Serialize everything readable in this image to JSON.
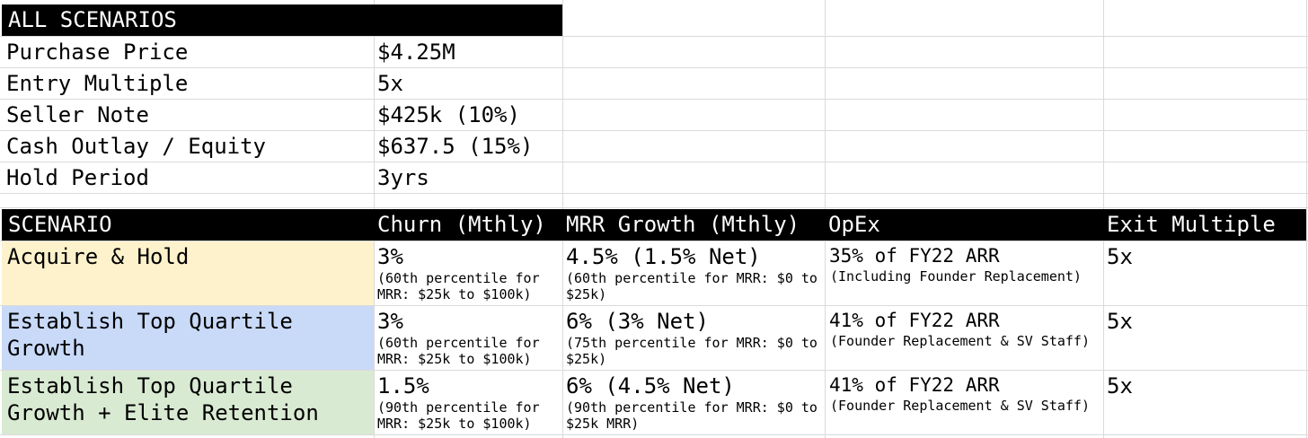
{
  "summary": {
    "header": "ALL SCENARIOS",
    "rows": [
      {
        "label": "Purchase Price",
        "value": "$4.25M"
      },
      {
        "label": "Entry Multiple",
        "value": "5x"
      },
      {
        "label": "Seller Note",
        "value": "$425k (10%)"
      },
      {
        "label": "Cash Outlay / Equity",
        "value": "$637.5 (15%)"
      },
      {
        "label": "Hold Period",
        "value": "3yrs"
      }
    ]
  },
  "scenarios": {
    "headers": [
      "SCENARIO",
      "Churn (Mthly)",
      "MRR Growth (Mthly)",
      "OpEx",
      "Exit Multiple"
    ],
    "rows": [
      {
        "name": "Acquire & Hold",
        "color": "#fdf2cc",
        "churn": "3%",
        "churn_note": "(60th percentile for MRR: $25k to $100k)",
        "growth": "4.5% (1.5% Net)",
        "growth_note": "(60th percentile for MRR: $0 to $25k)",
        "opex": "35% of FY22 ARR",
        "opex_note": "(Including Founder Replacement)",
        "exit": "5x"
      },
      {
        "name": "Establish Top Quartile Growth",
        "color": "#c9daf8",
        "churn": "3%",
        "churn_note": "(60th percentile for MRR: $25k to $100k)",
        "growth": "6% (3% Net)",
        "growth_note": "(75th percentile for MRR: $0 to $25k)",
        "opex": "41% of FY22 ARR",
        "opex_note": "(Founder Replacement & SV Staff)",
        "exit": "5x"
      },
      {
        "name": "Establish Top Quartile Growth + Elite Retention",
        "color": "#d9ead3",
        "churn": "1.5%",
        "churn_note": "(90th percentile for MRR: $25k to $100k)",
        "growth": "6% (4.5% Net)",
        "growth_note": "(90th percentile for MRR: $0 to $25k MRR)",
        "opex": "41% of FY22 ARR",
        "opex_note": "(Founder Replacement & SV Staff)",
        "exit": "5x"
      }
    ]
  }
}
